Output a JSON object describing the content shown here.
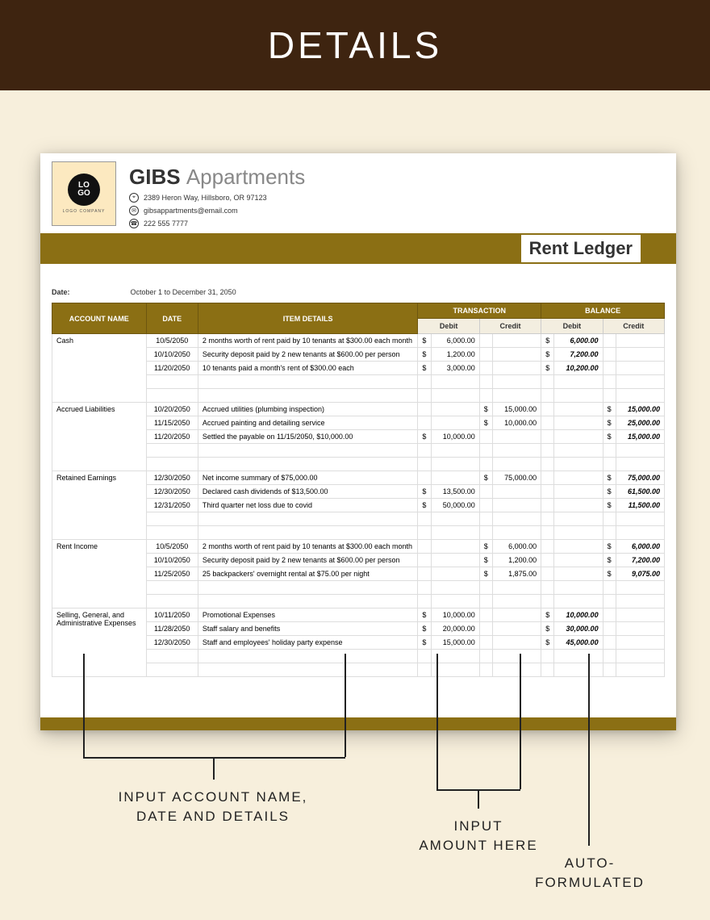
{
  "banner": {
    "title": "DETAILS"
  },
  "logo": {
    "text": "LO\nGO",
    "sub": "LOGO COMPANY"
  },
  "company": {
    "name_bold": "GIBS",
    "name_light": "Appartments",
    "address": "2389 Heron Way, Hillsboro, OR 97123",
    "email": "gibsappartments@email.com",
    "phone": "222 555 7777"
  },
  "doc_title": "Rent Ledger",
  "date_label": "Date:",
  "date_value": "October 1 to December 31, 2050",
  "columns": {
    "acct": "ACCOUNT NAME",
    "date": "DATE",
    "item": "ITEM DETAILS",
    "trans": "TRANSACTION",
    "bal": "BALANCE",
    "debit": "Debit",
    "credit": "Credit"
  },
  "sections": [
    {
      "account": "Cash",
      "rows": [
        {
          "date": "10/5/2050",
          "item": "2 months worth of rent paid by 10 tenants at $300.00 each month",
          "t_debit": "6,000.00",
          "t_credit": "",
          "b_debit": "6,000.00",
          "b_credit": ""
        },
        {
          "date": "10/10/2050",
          "item": "Security deposit paid by 2 new tenants at $600.00 per person",
          "t_debit": "1,200.00",
          "t_credit": "",
          "b_debit": "7,200.00",
          "b_credit": ""
        },
        {
          "date": "11/20/2050",
          "item": "10 tenants paid a month's rent of $300.00 each",
          "t_debit": "3,000.00",
          "t_credit": "",
          "b_debit": "10,200.00",
          "b_credit": ""
        }
      ]
    },
    {
      "account": "Accrued Liabilities",
      "rows": [
        {
          "date": "10/20/2050",
          "item": "Accrued utilities (plumbing inspection)",
          "t_debit": "",
          "t_credit": "15,000.00",
          "b_debit": "",
          "b_credit": "15,000.00"
        },
        {
          "date": "11/15/2050",
          "item": "Accrued painting and detailing service",
          "t_debit": "",
          "t_credit": "10,000.00",
          "b_debit": "",
          "b_credit": "25,000.00"
        },
        {
          "date": "11/20/2050",
          "item": "Settled the payable on 11/15/2050, $10,000.00",
          "t_debit": "10,000.00",
          "t_credit": "",
          "b_debit": "",
          "b_credit": "15,000.00"
        }
      ]
    },
    {
      "account": "Retained Earnings",
      "rows": [
        {
          "date": "12/30/2050",
          "item": "Net income summary of $75,000.00",
          "t_debit": "",
          "t_credit": "75,000.00",
          "b_debit": "",
          "b_credit": "75,000.00"
        },
        {
          "date": "12/30/2050",
          "item": "Declared cash dividends of $13,500.00",
          "t_debit": "13,500.00",
          "t_credit": "",
          "b_debit": "",
          "b_credit": "61,500.00"
        },
        {
          "date": "12/31/2050",
          "item": "Third quarter net loss due to covid",
          "t_debit": "50,000.00",
          "t_credit": "",
          "b_debit": "",
          "b_credit": "11,500.00"
        }
      ]
    },
    {
      "account": "Rent Income",
      "rows": [
        {
          "date": "10/5/2050",
          "item": "2 months worth of rent paid by 10 tenants at $300.00 each month",
          "t_debit": "",
          "t_credit": "6,000.00",
          "b_debit": "",
          "b_credit": "6,000.00"
        },
        {
          "date": "10/10/2050",
          "item": "Security deposit paid by 2 new tenants at $600.00 per person",
          "t_debit": "",
          "t_credit": "1,200.00",
          "b_debit": "",
          "b_credit": "7,200.00"
        },
        {
          "date": "11/25/2050",
          "item": "25 backpackers' overnight rental at $75.00 per night",
          "t_debit": "",
          "t_credit": "1,875.00",
          "b_debit": "",
          "b_credit": "9,075.00"
        }
      ]
    },
    {
      "account": "Selling, General, and Administrative Expenses",
      "rows": [
        {
          "date": "10/11/2050",
          "item": "Promotional Expenses",
          "t_debit": "10,000.00",
          "t_credit": "",
          "b_debit": "10,000.00",
          "b_credit": ""
        },
        {
          "date": "11/28/2050",
          "item": "Staff salary and benefits",
          "t_debit": "20,000.00",
          "t_credit": "",
          "b_debit": "30,000.00",
          "b_credit": ""
        },
        {
          "date": "12/30/2050",
          "item": "Staff and employees' holiday party expense",
          "t_debit": "15,000.00",
          "t_credit": "",
          "b_debit": "45,000.00",
          "b_credit": ""
        }
      ]
    }
  ],
  "annotations": {
    "a1": "INPUT ACCOUNT NAME,\nDATE AND DETAILS",
    "a2": "INPUT\nAMOUNT HERE",
    "a3": "AUTO-\nFORMULATED"
  },
  "colors": {
    "page_bg": "#f7efdc",
    "banner_bg": "#3e2410",
    "accent": "#8b6f14"
  }
}
